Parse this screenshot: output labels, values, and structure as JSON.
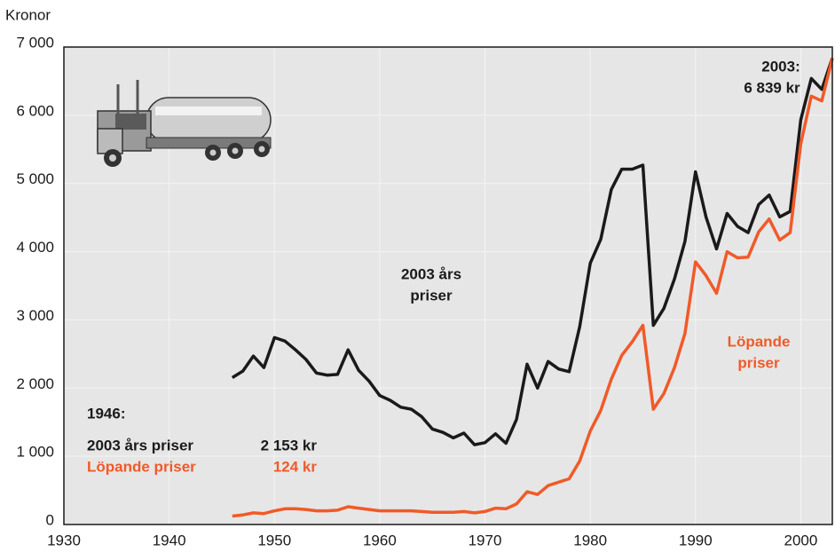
{
  "chart_data": {
    "type": "line",
    "ylabel": "Kronor",
    "x": [
      1946,
      1947,
      1948,
      1949,
      1950,
      1951,
      1952,
      1953,
      1954,
      1955,
      1956,
      1957,
      1958,
      1959,
      1960,
      1961,
      1962,
      1963,
      1964,
      1965,
      1966,
      1967,
      1968,
      1969,
      1970,
      1971,
      1972,
      1973,
      1974,
      1975,
      1976,
      1977,
      1978,
      1979,
      1980,
      1981,
      1982,
      1983,
      1984,
      1985,
      1986,
      1987,
      1988,
      1989,
      1990,
      1991,
      1992,
      1993,
      1994,
      1995,
      1996,
      1997,
      1998,
      1999,
      2000,
      2001,
      2002,
      2003
    ],
    "series": [
      {
        "name": "2003 års priser",
        "color": "#1a1a1a",
        "values": [
          2153,
          2250,
          2470,
          2300,
          2740,
          2690,
          2560,
          2420,
          2220,
          2190,
          2200,
          2560,
          2260,
          2100,
          1890,
          1820,
          1720,
          1690,
          1580,
          1400,
          1350,
          1270,
          1340,
          1170,
          1200,
          1330,
          1190,
          1540,
          2350,
          2000,
          2390,
          2280,
          2240,
          2900,
          3830,
          4180,
          4910,
          5210,
          5210,
          5270,
          2920,
          3170,
          3600,
          4150,
          5170,
          4510,
          4040,
          4560,
          4370,
          4280,
          4690,
          4830,
          4510,
          4590,
          5930,
          6540,
          6380,
          6839
        ],
        "value_labels": [
          "2 153 kr",
          null,
          null,
          null,
          null,
          null,
          null,
          null,
          null,
          null,
          null,
          null,
          null,
          null,
          null,
          null,
          null,
          null,
          null,
          null,
          null,
          null,
          null,
          null,
          null,
          null,
          null,
          null,
          null,
          null,
          null,
          null,
          null,
          null,
          null,
          null,
          null,
          null,
          null,
          null,
          null,
          null,
          null,
          null,
          null,
          null,
          null,
          null,
          null,
          null,
          null,
          null,
          null,
          null,
          null,
          null,
          null,
          "6 839 kr"
        ]
      },
      {
        "name": "Löpande priser",
        "color": "#f05a28",
        "values": [
          124,
          140,
          170,
          160,
          200,
          230,
          230,
          220,
          200,
          200,
          210,
          260,
          240,
          220,
          200,
          200,
          200,
          200,
          190,
          180,
          180,
          180,
          190,
          170,
          190,
          240,
          230,
          300,
          480,
          440,
          570,
          620,
          670,
          930,
          1370,
          1670,
          2130,
          2480,
          2680,
          2920,
          1690,
          1920,
          2300,
          2800,
          3850,
          3650,
          3390,
          4000,
          3910,
          3920,
          4290,
          4480,
          4170,
          4280,
          5580,
          6280,
          6210,
          6839
        ],
        "value_labels": [
          "124 kr",
          null,
          null,
          null,
          null,
          null,
          null,
          null,
          null,
          null,
          null,
          null,
          null,
          null,
          null,
          null,
          null,
          null,
          null,
          null,
          null,
          null,
          null,
          null,
          null,
          null,
          null,
          null,
          null,
          null,
          null,
          null,
          null,
          null,
          null,
          null,
          null,
          null,
          null,
          null,
          null,
          null,
          null,
          null,
          null,
          null,
          null,
          null,
          null,
          null,
          null,
          null,
          null,
          null,
          null,
          null,
          null,
          null
        ]
      }
    ],
    "annotations": [
      "2003:",
      "2003 års",
      "priser",
      "Löpande",
      "priser",
      "1946:"
    ],
    "xlim": [
      1930,
      2003
    ],
    "xticks": [
      1930,
      1940,
      1950,
      1960,
      1970,
      1980,
      1990,
      2000
    ],
    "ylim": [
      0,
      7000
    ],
    "yticks": [
      0,
      {
        "value": 1000,
        "label": "1 000"
      },
      {
        "value": 2000,
        "label": "2 000"
      },
      {
        "value": 3000,
        "label": "3 000"
      },
      {
        "value": 4000,
        "label": "4 000"
      },
      {
        "value": 5000,
        "label": "5 000"
      },
      {
        "value": 6000,
        "label": "6 000"
      },
      {
        "value": 7000,
        "label": "7 000"
      }
    ],
    "grid": true
  }
}
